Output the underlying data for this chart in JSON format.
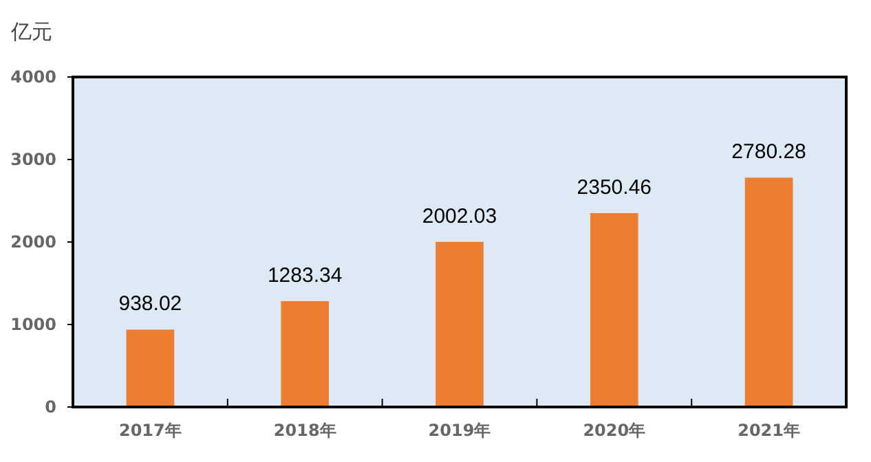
{
  "chart_data": {
    "type": "bar",
    "ylabel": "亿元",
    "categories": [
      "2017年",
      "2018年",
      "2019年",
      "2020年",
      "2021年"
    ],
    "values": [
      938.02,
      1283.34,
      2002.03,
      2350.46,
      2780.28
    ],
    "color": "#ed7d31",
    "ylim": [
      0,
      4000
    ],
    "yticks": [
      0,
      1000,
      2000,
      3000,
      4000
    ],
    "data_labels": true
  }
}
